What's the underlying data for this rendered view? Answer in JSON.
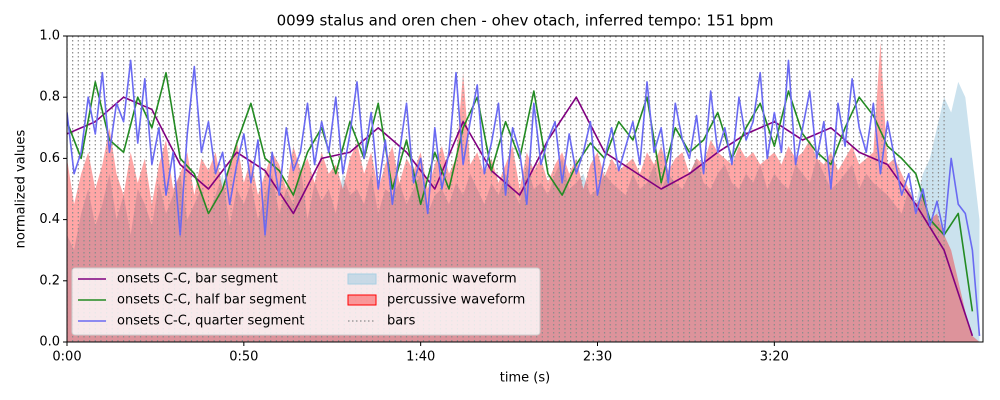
{
  "chart_data": {
    "type": "line",
    "title": "0099 stalus and oren chen - ohev otach, inferred tempo: 151 bpm",
    "xlabel": "time (s)",
    "ylabel": "normalized values",
    "xlim": [
      0,
      259
    ],
    "ylim": [
      0,
      1
    ],
    "xticks": [
      {
        "value": 0,
        "label": "0:00"
      },
      {
        "value": 50,
        "label": "0:50"
      },
      {
        "value": 100,
        "label": "1:40"
      },
      {
        "value": 150,
        "label": "2:30"
      },
      {
        "value": 200,
        "label": "3:20"
      }
    ],
    "yticks": [
      {
        "value": 0,
        "label": "0.0"
      },
      0.2,
      0.4,
      0.6,
      0.8,
      {
        "value": 1,
        "label": "1.0"
      }
    ],
    "legend": "lower left",
    "x": [
      0,
      2,
      4,
      6,
      8,
      10,
      12,
      14,
      16,
      18,
      20,
      22,
      24,
      26,
      28,
      30,
      32,
      34,
      36,
      38,
      40,
      42,
      44,
      46,
      48,
      50,
      52,
      54,
      56,
      58,
      60,
      62,
      64,
      66,
      68,
      70,
      72,
      74,
      76,
      78,
      80,
      82,
      84,
      86,
      88,
      90,
      92,
      94,
      96,
      98,
      100,
      102,
      104,
      106,
      108,
      110,
      112,
      114,
      116,
      118,
      120,
      122,
      124,
      126,
      128,
      130,
      132,
      134,
      136,
      138,
      140,
      142,
      144,
      146,
      148,
      150,
      152,
      154,
      156,
      158,
      160,
      162,
      164,
      166,
      168,
      170,
      172,
      174,
      176,
      178,
      180,
      182,
      184,
      186,
      188,
      190,
      192,
      194,
      196,
      198,
      200,
      202,
      204,
      206,
      208,
      210,
      212,
      214,
      216,
      218,
      220,
      222,
      224,
      226,
      228,
      230,
      232,
      234,
      236,
      238,
      240,
      242,
      244,
      246,
      248,
      250,
      252,
      254,
      256,
      258
    ],
    "series": [
      {
        "name": "onsets C-C, bar segment",
        "style": "line",
        "color": "#800080",
        "x": [
          0,
          8,
          16,
          24,
          32,
          40,
          48,
          56,
          64,
          72,
          80,
          88,
          96,
          104,
          112,
          120,
          128,
          136,
          144,
          152,
          160,
          168,
          176,
          184,
          192,
          200,
          208,
          216,
          224,
          232,
          240,
          248,
          256
        ],
        "values": [
          0.68,
          0.72,
          0.8,
          0.76,
          0.58,
          0.5,
          0.62,
          0.56,
          0.42,
          0.6,
          0.62,
          0.7,
          0.62,
          0.5,
          0.72,
          0.56,
          0.48,
          0.66,
          0.8,
          0.62,
          0.56,
          0.5,
          0.55,
          0.62,
          0.68,
          0.72,
          0.66,
          0.7,
          0.62,
          0.58,
          0.45,
          0.3,
          0.02
        ]
      },
      {
        "name": "onsets C-C, half bar segment",
        "style": "line",
        "color": "#238b23",
        "x": [
          0,
          4,
          8,
          12,
          16,
          20,
          24,
          28,
          32,
          36,
          40,
          44,
          48,
          52,
          56,
          60,
          64,
          68,
          72,
          76,
          80,
          84,
          88,
          92,
          96,
          100,
          104,
          108,
          112,
          116,
          120,
          124,
          128,
          132,
          136,
          140,
          144,
          148,
          152,
          156,
          160,
          164,
          168,
          172,
          176,
          180,
          184,
          188,
          192,
          196,
          200,
          204,
          208,
          212,
          216,
          220,
          224,
          228,
          232,
          236,
          240,
          244,
          248,
          252,
          256
        ],
        "values": [
          0.72,
          0.6,
          0.85,
          0.66,
          0.62,
          0.8,
          0.7,
          0.88,
          0.6,
          0.55,
          0.42,
          0.5,
          0.65,
          0.78,
          0.6,
          0.56,
          0.48,
          0.62,
          0.7,
          0.55,
          0.72,
          0.6,
          0.78,
          0.5,
          0.66,
          0.45,
          0.62,
          0.5,
          0.7,
          0.8,
          0.56,
          0.72,
          0.6,
          0.82,
          0.55,
          0.48,
          0.58,
          0.65,
          0.6,
          0.72,
          0.66,
          0.8,
          0.52,
          0.7,
          0.62,
          0.66,
          0.75,
          0.6,
          0.7,
          0.78,
          0.64,
          0.82,
          0.68,
          0.62,
          0.58,
          0.7,
          0.8,
          0.74,
          0.64,
          0.6,
          0.55,
          0.4,
          0.35,
          0.42,
          0.1
        ]
      },
      {
        "name": "onsets C-C, quarter segment",
        "style": "line",
        "color": "#6a6af2",
        "values": [
          0.75,
          0.55,
          0.62,
          0.8,
          0.68,
          0.88,
          0.62,
          0.78,
          0.72,
          0.92,
          0.65,
          0.86,
          0.58,
          0.7,
          0.48,
          0.62,
          0.35,
          0.68,
          0.9,
          0.62,
          0.72,
          0.55,
          0.62,
          0.45,
          0.58,
          0.68,
          0.52,
          0.66,
          0.35,
          0.62,
          0.48,
          0.7,
          0.56,
          0.62,
          0.78,
          0.58,
          0.72,
          0.62,
          0.8,
          0.55,
          0.68,
          0.85,
          0.6,
          0.75,
          0.5,
          0.66,
          0.45,
          0.62,
          0.78,
          0.52,
          0.6,
          0.42,
          0.7,
          0.5,
          0.62,
          0.88,
          0.58,
          0.72,
          0.84,
          0.55,
          0.65,
          0.78,
          0.48,
          0.7,
          0.62,
          0.45,
          0.78,
          0.58,
          0.66,
          0.72,
          0.52,
          0.68,
          0.55,
          0.62,
          0.72,
          0.48,
          0.6,
          0.7,
          0.56,
          0.64,
          0.72,
          0.58,
          0.85,
          0.62,
          0.7,
          0.52,
          0.78,
          0.66,
          0.6,
          0.74,
          0.55,
          0.82,
          0.62,
          0.7,
          0.58,
          0.8,
          0.66,
          0.72,
          0.88,
          0.6,
          0.75,
          0.62,
          0.92,
          0.58,
          0.7,
          0.82,
          0.6,
          0.72,
          0.5,
          0.78,
          0.64,
          0.86,
          0.7,
          0.62,
          0.78,
          0.55,
          0.72,
          0.6,
          0.48,
          0.55,
          0.42,
          0.5,
          0.38,
          0.46,
          0.35,
          0.6,
          0.45,
          0.42,
          0.3,
          0.02
        ]
      },
      {
        "name": "harmonic waveform",
        "style": "area",
        "color": "#a9cfe3",
        "values": [
          0.35,
          0.3,
          0.42,
          0.5,
          0.38,
          0.45,
          0.55,
          0.4,
          0.48,
          0.35,
          0.5,
          0.45,
          0.38,
          0.52,
          0.42,
          0.48,
          0.55,
          0.4,
          0.45,
          0.5,
          0.42,
          0.48,
          0.55,
          0.38,
          0.5,
          0.45,
          0.52,
          0.4,
          0.48,
          0.55,
          0.42,
          0.5,
          0.45,
          0.58,
          0.4,
          0.52,
          0.46,
          0.5,
          0.42,
          0.55,
          0.48,
          0.5,
          0.45,
          0.55,
          0.42,
          0.5,
          0.48,
          0.52,
          0.45,
          0.5,
          0.55,
          0.42,
          0.48,
          0.5,
          0.45,
          0.52,
          0.48,
          0.55,
          0.5,
          0.45,
          0.52,
          0.48,
          0.55,
          0.5,
          0.45,
          0.58,
          0.5,
          0.52,
          0.48,
          0.55,
          0.6,
          0.5,
          0.52,
          0.55,
          0.48,
          0.5,
          0.55,
          0.52,
          0.5,
          0.48,
          0.55,
          0.5,
          0.52,
          0.58,
          0.5,
          0.55,
          0.52,
          0.5,
          0.55,
          0.6,
          0.52,
          0.5,
          0.55,
          0.58,
          0.52,
          0.5,
          0.55,
          0.52,
          0.58,
          0.5,
          0.55,
          0.52,
          0.5,
          0.58,
          0.55,
          0.52,
          0.6,
          0.55,
          0.5,
          0.52,
          0.55,
          0.58,
          0.5,
          0.55,
          0.52,
          0.5,
          0.48,
          0.45,
          0.42,
          0.5,
          0.45,
          0.55,
          0.6,
          0.7,
          0.8,
          0.75,
          0.85,
          0.8,
          0.6,
          0.4
        ]
      },
      {
        "name": "percussive waveform",
        "style": "area",
        "color": "#ff0000",
        "values": [
          0.6,
          0.45,
          0.55,
          0.62,
          0.5,
          0.58,
          0.7,
          0.55,
          0.48,
          0.62,
          0.52,
          0.6,
          0.45,
          0.58,
          0.66,
          0.5,
          0.55,
          0.62,
          0.48,
          0.6,
          0.56,
          0.62,
          0.5,
          0.58,
          0.66,
          0.52,
          0.6,
          0.48,
          0.55,
          0.62,
          0.58,
          0.5,
          0.64,
          0.56,
          0.6,
          0.52,
          0.62,
          0.55,
          0.58,
          0.5,
          0.6,
          0.65,
          0.55,
          0.62,
          0.5,
          0.58,
          0.64,
          0.52,
          0.6,
          0.56,
          0.62,
          0.5,
          0.58,
          0.64,
          0.55,
          0.6,
          0.88,
          0.58,
          0.62,
          0.55,
          0.6,
          0.52,
          0.58,
          0.64,
          0.5,
          0.62,
          0.56,
          0.6,
          0.52,
          0.58,
          0.62,
          0.55,
          0.6,
          0.5,
          0.58,
          0.62,
          0.54,
          0.6,
          0.56,
          0.58,
          0.6,
          0.55,
          0.62,
          0.58,
          0.64,
          0.56,
          0.6,
          0.62,
          0.55,
          0.6,
          0.58,
          0.66,
          0.62,
          0.6,
          0.58,
          0.64,
          0.6,
          0.62,
          0.58,
          0.6,
          0.62,
          0.58,
          0.64,
          0.6,
          0.62,
          0.66,
          0.6,
          0.58,
          0.62,
          0.56,
          0.6,
          0.64,
          0.58,
          0.6,
          0.62,
          0.98,
          0.58,
          0.6,
          0.55,
          0.5,
          0.45,
          0.48,
          0.4,
          0.42,
          0.35,
          0.3,
          0.2,
          0.1,
          0.02,
          0
        ]
      },
      {
        "name": "bars",
        "style": "vlines",
        "color": "#8c8c8c",
        "x": [
          0,
          1.6,
          3.2,
          4.8,
          6.4,
          8,
          9.6,
          11.2,
          12.8,
          14.4,
          16,
          17.6,
          19.2,
          20.8,
          22.4,
          24,
          25.6,
          27.2,
          28.8,
          30.4,
          32,
          33.6,
          35.2,
          36.8,
          38.4,
          40,
          41.6,
          43.2,
          44.8,
          46.4,
          48,
          49.6,
          51.2,
          52.8,
          54.4,
          56,
          57.6,
          59.2,
          60.8,
          62.4,
          64,
          65.6,
          67.2,
          68.8,
          70.4,
          72,
          73.6,
          75.2,
          76.8,
          78.4,
          80,
          81.6,
          83.2,
          84.8,
          86.4,
          88,
          89.6,
          91.2,
          92.8,
          94.4,
          96,
          97.6,
          99.2,
          100.8,
          102.4,
          104,
          105.6,
          107.2,
          108.8,
          110.4,
          112,
          113.6,
          115.2,
          116.8,
          118.4,
          120,
          121.6,
          123.2,
          124.8,
          126.4,
          128,
          129.6,
          131.2,
          132.8,
          134.4,
          136,
          137.6,
          139.2,
          140.8,
          142.4,
          144,
          145.6,
          147.2,
          148.8,
          150.4,
          152,
          153.6,
          155.2,
          156.8,
          158.4,
          160,
          161.6,
          163.2,
          164.8,
          166.4,
          168,
          169.6,
          171.2,
          172.8,
          174.4,
          176,
          177.6,
          179.2,
          180.8,
          182.4,
          184,
          185.6,
          187.2,
          188.8,
          190.4,
          192,
          193.6,
          195.2,
          196.8,
          198.4,
          200,
          201.6,
          203.2,
          204.8,
          206.4,
          208,
          209.6,
          211.2,
          212.8,
          214.4,
          216,
          217.6,
          219.2,
          220.8,
          222.4,
          224,
          225.6,
          227.2,
          228.8,
          230.4,
          232,
          233.6,
          235.2,
          236.8,
          238.4,
          240,
          241.6,
          243.2,
          244.8,
          246.4,
          248
        ]
      }
    ]
  }
}
